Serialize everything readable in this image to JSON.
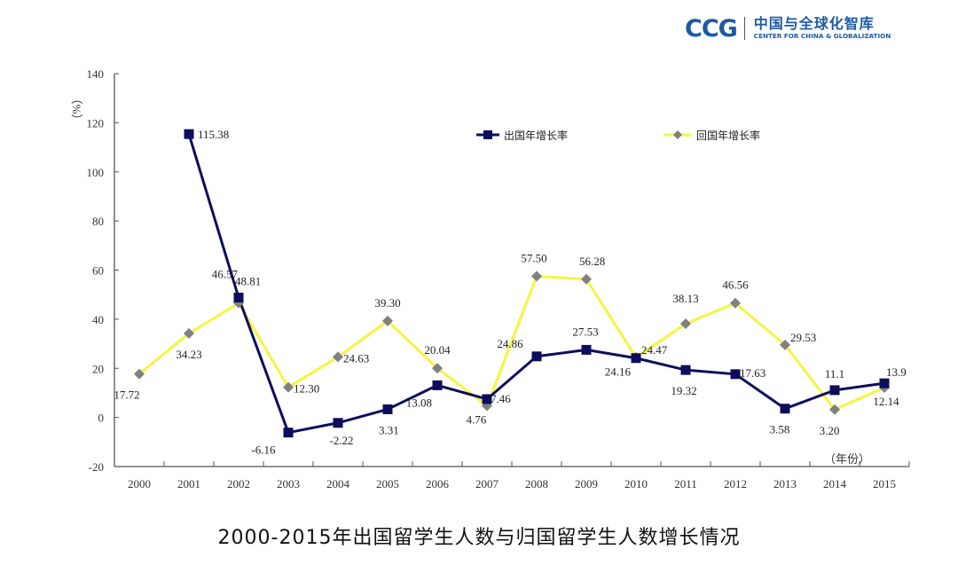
{
  "logo": {
    "abbr": "CCG",
    "name_cn": "中国与全球化智库",
    "name_en": "CENTER FOR CHINA & GLOBALIZATION",
    "color": "#1d5aa3"
  },
  "caption": "2000-2015年出国留学生人数与归国留学生人数增长情况",
  "chart_data": {
    "type": "line",
    "title": "2000-2015年出国留学生人数与归国留学生人数增长情况",
    "ylabel": "（%）",
    "xlabel": "（年份）",
    "ylim": [
      -20,
      140
    ],
    "yticks": [
      -20,
      0,
      20,
      40,
      60,
      80,
      100,
      120,
      140
    ],
    "ytick_labels": [
      "-20",
      "0",
      "20",
      "40",
      "60",
      "80",
      "100",
      "120",
      "140"
    ],
    "categories": [
      "2000",
      "2001",
      "2002",
      "2003",
      "2004",
      "2005",
      "2006",
      "2007",
      "2008",
      "2009",
      "2010",
      "2011",
      "2012",
      "2013",
      "2014",
      "2015"
    ],
    "legend_position": "top",
    "grid": false,
    "series": [
      {
        "name": "出国年增长率",
        "color": "#0d0d5c",
        "marker": "square",
        "values": [
          null,
          115.38,
          48.81,
          -6.16,
          -2.22,
          3.31,
          13.08,
          7.46,
          24.86,
          27.53,
          24.16,
          19.32,
          17.63,
          3.58,
          11.1,
          13.9
        ],
        "labels": [
          null,
          "115.38",
          "48.81",
          "-6.16",
          "-2.22",
          "3.31",
          "13.08",
          "7.46",
          "24.86",
          "27.53",
          "24.16",
          "19.32",
          "17.63",
          "3.58",
          "11.1",
          "13.9"
        ]
      },
      {
        "name": "回国年增长率",
        "color": "#f5f540",
        "marker_color": "#808080",
        "marker": "diamond",
        "values": [
          17.72,
          34.23,
          46.57,
          12.3,
          24.63,
          39.3,
          20.04,
          4.76,
          57.5,
          56.28,
          24.47,
          38.13,
          46.56,
          29.53,
          3.2,
          12.14
        ],
        "labels": [
          "17.72",
          "34.23",
          "46.57",
          "12.30",
          "24.63",
          "39.30",
          "20.04",
          "4.76",
          "57.50",
          "56.28",
          "24.47",
          "38.13",
          "46.56",
          "29.53",
          "3.20",
          "12.14"
        ]
      }
    ]
  }
}
